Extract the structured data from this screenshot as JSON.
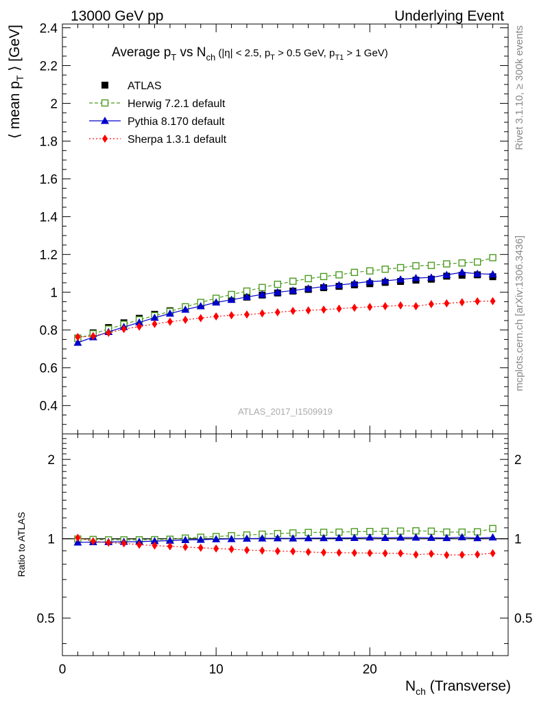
{
  "header": {
    "energy_label": "13000 GeV pp",
    "process_label": "Underlying Event"
  },
  "side": {
    "rivet_label": "Rivet 3.1.10, ≥ 300k events",
    "mcplots_label": "mcplots.cern.ch [arXiv:1306.3436]"
  },
  "chart_data": {
    "type": "scatter",
    "title": "Average p_T vs N_ch (|η| < 2.5, p_T > 0.5 GeV, p_T1 > 1 GeV)",
    "title_parts": {
      "a": "Average p",
      "a_sub": "T",
      "b": " vs N",
      "b_sub": "ch",
      "c": " (|η| < 2.5, p",
      "c_sub": "T",
      "d": " > 0.5 GeV, p",
      "d_sub": "T1",
      "e": " > 1 GeV)"
    },
    "ylabel": "⟨ mean p_T ⟩ [GeV]",
    "ylabel_parts": {
      "a": "⟨ mean p",
      "sub": "T",
      "b": " ⟩ [GeV]"
    },
    "xlabel": "N_ch (Transverse)",
    "xlabel_parts": {
      "a": "N",
      "sub": "ch",
      "b": " (Transverse)"
    },
    "ratio_ylabel": "Ratio to ATLAS",
    "watermark": "ATLAS_2017_I1509919",
    "xlim": [
      0,
      29
    ],
    "ylim": [
      0.25,
      2.42
    ],
    "ratio_ylim": [
      0.36,
      2.5
    ],
    "ratio_scale": "log",
    "x_ticks": [
      0,
      10,
      20
    ],
    "x_tick_labels": [
      "0",
      "10",
      "20"
    ],
    "y_ticks": [
      0.4,
      0.6,
      0.8,
      1.0,
      1.2,
      1.4,
      1.6,
      1.8,
      2.0,
      2.2,
      2.4
    ],
    "y_tick_labels": [
      "0.4",
      "0.6",
      "0.8",
      "1",
      "1.2",
      "1.4",
      "1.6",
      "1.8",
      "2",
      "2.2",
      "2.4"
    ],
    "ratio_ticks": [
      0.5,
      1,
      2
    ],
    "ratio_tick_labels": [
      "0.5",
      "1",
      "2"
    ],
    "legend_position": "top-left",
    "x": [
      1,
      2,
      3,
      4,
      5,
      6,
      7,
      8,
      9,
      10,
      11,
      12,
      13,
      14,
      15,
      16,
      17,
      18,
      19,
      20,
      21,
      22,
      23,
      24,
      25,
      26,
      27,
      28
    ],
    "series": [
      {
        "name": "ATLAS",
        "color": "#000000",
        "marker": "filled-square",
        "line": "none",
        "values": [
          0.757,
          0.785,
          0.813,
          0.838,
          0.862,
          0.883,
          0.902,
          0.918,
          0.934,
          0.95,
          0.962,
          0.974,
          0.985,
          0.996,
          1.006,
          1.015,
          1.024,
          1.031,
          1.039,
          1.045,
          1.052,
          1.057,
          1.064,
          1.069,
          1.085,
          1.09,
          1.092,
          1.082
        ]
      },
      {
        "name": "Herwig 7.2.1 default",
        "color": "#4a9a1e",
        "marker": "open-square",
        "line": "dashed",
        "values": [
          0.755,
          0.78,
          0.805,
          0.83,
          0.854,
          0.876,
          0.898,
          0.923,
          0.946,
          0.968,
          0.988,
          1.006,
          1.025,
          1.042,
          1.058,
          1.072,
          1.083,
          1.092,
          1.105,
          1.113,
          1.122,
          1.13,
          1.14,
          1.142,
          1.15,
          1.155,
          1.16,
          1.183
        ]
      },
      {
        "name": "Pythia 8.170 default",
        "color": "#0000cc",
        "marker": "filled-triangle",
        "line": "solid",
        "values": [
          0.733,
          0.762,
          0.79,
          0.816,
          0.84,
          0.865,
          0.887,
          0.908,
          0.926,
          0.946,
          0.96,
          0.975,
          0.988,
          1.0,
          1.009,
          1.02,
          1.03,
          1.038,
          1.047,
          1.057,
          1.06,
          1.068,
          1.075,
          1.078,
          1.092,
          1.105,
          1.098,
          1.095
        ]
      },
      {
        "name": "Sherpa 1.3.1 default",
        "color": "#ff0000",
        "marker": "filled-diamond",
        "line": "dotted",
        "values": [
          0.763,
          0.768,
          0.785,
          0.805,
          0.818,
          0.832,
          0.844,
          0.854,
          0.863,
          0.872,
          0.878,
          0.882,
          0.888,
          0.894,
          0.901,
          0.904,
          0.908,
          0.913,
          0.918,
          0.922,
          0.926,
          0.93,
          0.926,
          0.937,
          0.941,
          0.947,
          0.952,
          0.953
        ]
      }
    ]
  }
}
